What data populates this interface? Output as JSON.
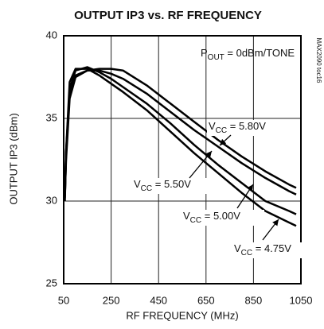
{
  "chart_data": {
    "type": "line",
    "title": "OUTPUT IP3 vs. RF FREQUENCY",
    "x_label": "RF FREQUENCY (MHz)",
    "y_label": "OUTPUT IP3 (dBm)",
    "xlim": [
      50,
      1050
    ],
    "xticks": [
      50,
      250,
      450,
      650,
      850,
      1050
    ],
    "ylim": [
      25,
      40
    ],
    "yticks": [
      25,
      30,
      35,
      40
    ],
    "grid": true,
    "x": [
      55,
      60,
      75,
      100,
      150,
      200,
      250,
      300,
      400,
      500,
      600,
      700,
      800,
      900,
      1000,
      1030
    ],
    "annotations": [
      {
        "parts": [
          "P",
          "OUT",
          " = 0dBm/TONE"
        ]
      },
      {
        "text": "MAX2090 toc16"
      }
    ],
    "series": [
      {
        "name_parts": [
          "V",
          "CC",
          " = 5.80V"
        ],
        "color": "#000000",
        "values": [
          30.5,
          33,
          36.5,
          37.6,
          37.9,
          38.0,
          38.0,
          37.9,
          37.0,
          35.9,
          34.8,
          33.7,
          32.7,
          31.8,
          31.0,
          30.8
        ]
      },
      {
        "name_parts": [
          "V",
          "CC",
          " = 5.50V"
        ],
        "color": "#000000",
        "values": [
          30.3,
          32.5,
          36.2,
          37.5,
          37.9,
          37.9,
          37.7,
          37.4,
          36.5,
          35.4,
          34.3,
          33.3,
          32.3,
          31.4,
          30.6,
          30.4
        ]
      },
      {
        "name_parts": [
          "V",
          "CC",
          " = 5.00V"
        ],
        "color": "#000000",
        "values": [
          30.2,
          32.8,
          36.8,
          37.9,
          38.1,
          37.8,
          37.4,
          36.9,
          35.9,
          34.7,
          33.4,
          32.2,
          31.1,
          30.0,
          29.4,
          29.2
        ]
      },
      {
        "name_parts": [
          "V",
          "CC",
          " = 4.75V"
        ],
        "color": "#000000",
        "values": [
          30.0,
          33.0,
          37.2,
          38.0,
          38.0,
          37.6,
          37.1,
          36.6,
          35.5,
          34.2,
          32.9,
          31.7,
          30.5,
          29.4,
          28.7,
          28.5
        ]
      }
    ]
  }
}
